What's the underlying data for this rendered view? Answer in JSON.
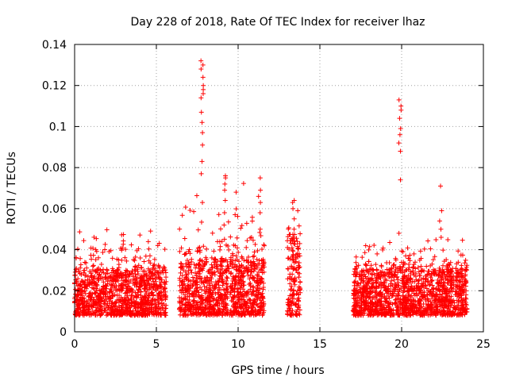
{
  "chart_data": {
    "type": "scatter",
    "title": "Day 228 of 2018, Rate Of TEC Index for receiver lhaz",
    "xlabel": "GPS time / hours",
    "ylabel": "ROTI / TECUs",
    "xlim": [
      0,
      25
    ],
    "ylim": [
      0,
      0.14
    ],
    "xticks": [
      0,
      5,
      10,
      15,
      20,
      25
    ],
    "xtick_labels": [
      "0",
      "5",
      "10",
      "15",
      "20",
      "25"
    ],
    "yticks": [
      0,
      0.02,
      0.04,
      0.06,
      0.08,
      0.1,
      0.12,
      0.14
    ],
    "ytick_labels": [
      "0",
      "0.02",
      "0.04",
      "0.06",
      "0.08",
      "0.1",
      "0.12",
      "0.14"
    ],
    "grid": true,
    "marker": "+",
    "marker_color": "#ff0000",
    "series": [
      {
        "name": "ROTI",
        "segments": [
          {
            "x_range": [
              0,
              5.6
            ],
            "typical": [
              0.008,
              0.03
            ],
            "peak_max": 0.053
          },
          {
            "x_range": [
              6.4,
              11.6
            ],
            "typical": [
              0.008,
              0.035
            ],
            "peak_max": 0.076
          },
          {
            "x_range": [
              13.0,
              13.8
            ],
            "typical": [
              0.008,
              0.045
            ],
            "peak_max": 0.064
          },
          {
            "x_range": [
              17.0,
              24.0
            ],
            "typical": [
              0.008,
              0.03
            ],
            "peak_max": 0.05
          }
        ],
        "spikes": [
          {
            "x": 7.8,
            "values": [
              0.063,
              0.077,
              0.083,
              0.091,
              0.097,
              0.102,
              0.107,
              0.114,
              0.116,
              0.118,
              0.12,
              0.124,
              0.128,
              0.13,
              0.132
            ]
          },
          {
            "x": 9.2,
            "values": [
              0.052,
              0.058,
              0.064,
              0.069,
              0.072,
              0.075,
              0.076
            ]
          },
          {
            "x": 11.3,
            "values": [
              0.05,
              0.058,
              0.063,
              0.066,
              0.069,
              0.075
            ]
          },
          {
            "x": 13.4,
            "values": [
              0.05,
              0.055,
              0.06,
              0.063,
              0.064
            ]
          },
          {
            "x": 19.9,
            "values": [
              0.048,
              0.074,
              0.088,
              0.092,
              0.096,
              0.099,
              0.104,
              0.108,
              0.11,
              0.113
            ]
          },
          {
            "x": 22.4,
            "values": [
              0.046,
              0.05,
              0.054,
              0.059,
              0.071
            ]
          }
        ]
      }
    ]
  }
}
